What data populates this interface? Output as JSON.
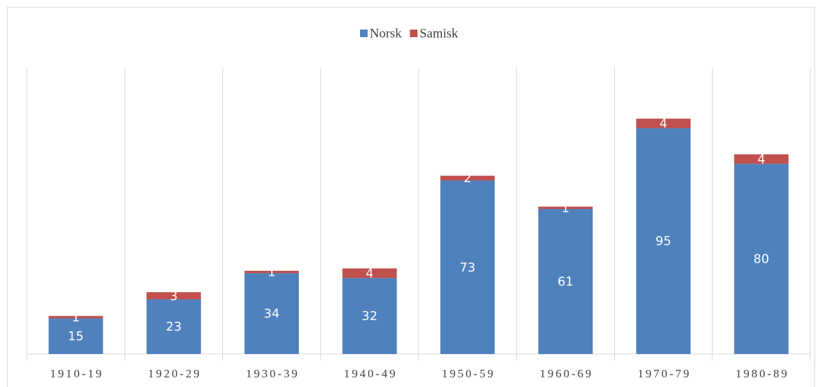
{
  "chart_data": {
    "type": "stacked_bar",
    "categories": [
      "1910-19",
      "1920-29",
      "1930-39",
      "1940-49",
      "1950-59",
      "1960-69",
      "1970-79",
      "1980-89"
    ],
    "series": [
      {
        "name": "Norsk",
        "color": "#4f81bd",
        "values": [
          15,
          23,
          34,
          32,
          73,
          61,
          95,
          80
        ]
      },
      {
        "name": "Samisk",
        "color": "#c0504d",
        "values": [
          1,
          3,
          1,
          4,
          2,
          1,
          4,
          4
        ]
      }
    ],
    "ylim": [
      0,
      120
    ],
    "legend": "top"
  }
}
